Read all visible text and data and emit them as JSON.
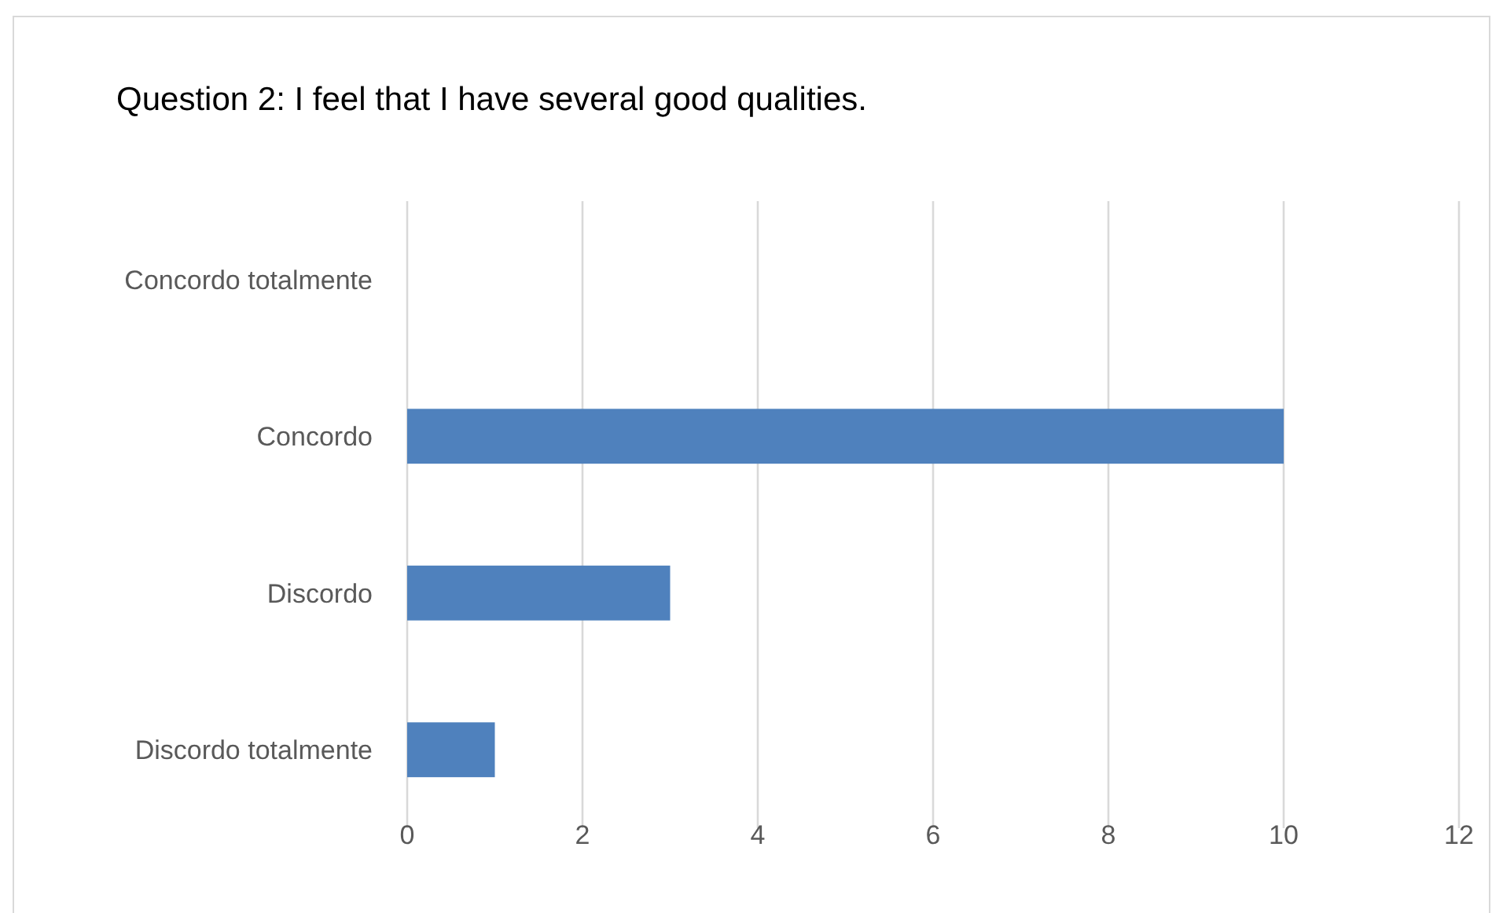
{
  "chart_data": {
    "type": "bar",
    "title": "Question 2: I feel that I have several good qualities.",
    "orientation": "horizontal",
    "categories": [
      "Concordo totalmente",
      "Concordo",
      "Discordo",
      "Discordo totalmente"
    ],
    "values": [
      0,
      10,
      3,
      1
    ],
    "color": "#4f81bd",
    "xlim": [
      0,
      12
    ],
    "xticks": [
      0,
      2,
      4,
      6,
      8,
      10,
      12
    ],
    "grid": "x"
  }
}
